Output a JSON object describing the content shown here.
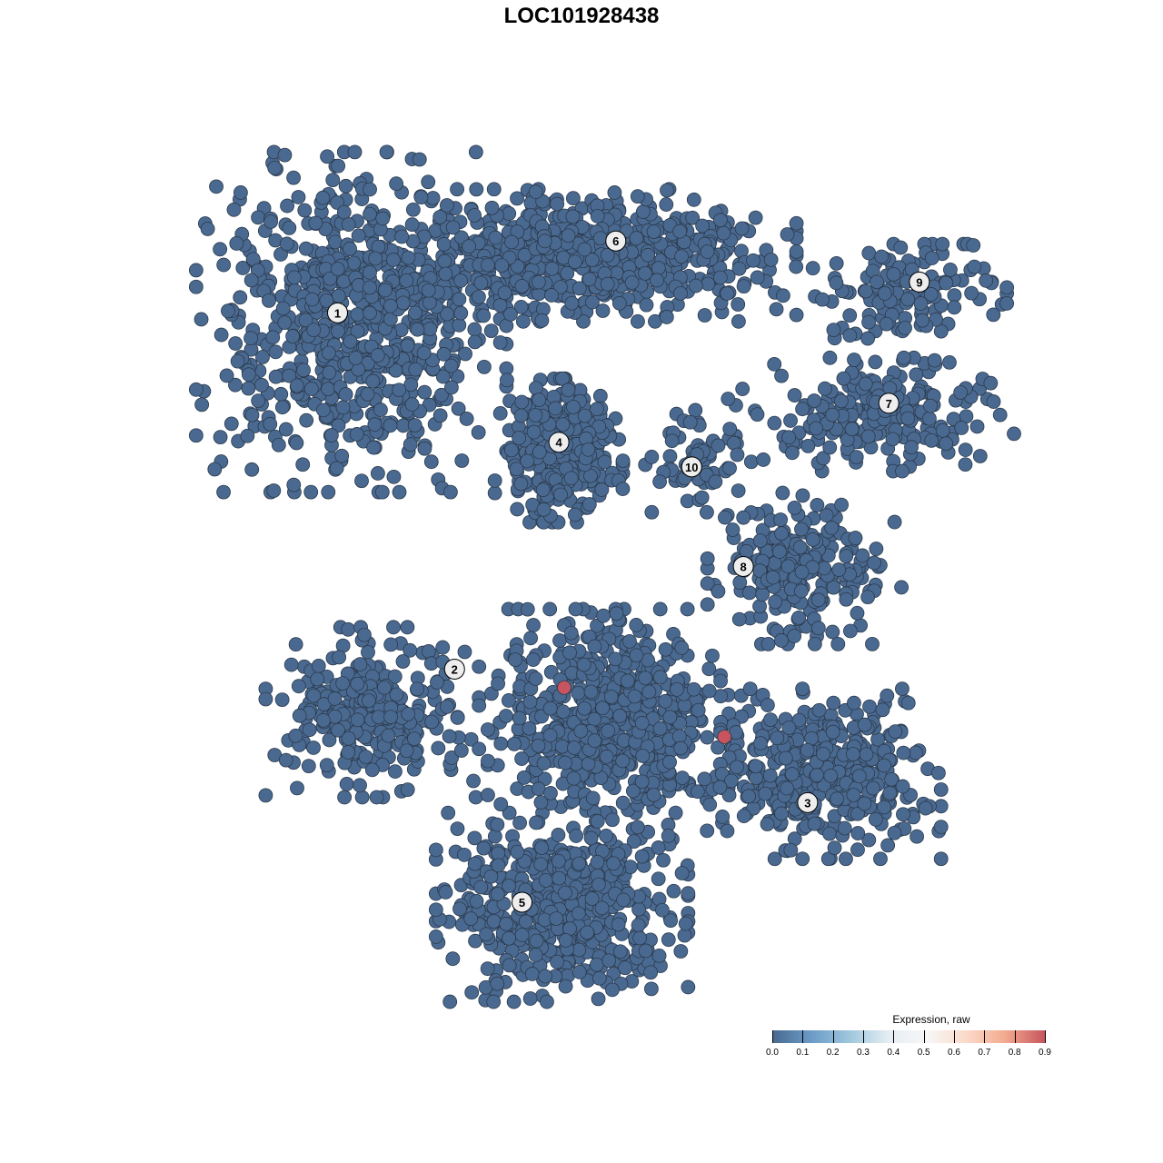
{
  "chart_data": {
    "type": "scatter",
    "title": "LOC101928438",
    "xlabel": "",
    "ylabel": "",
    "xlim": [
      -40,
      40
    ],
    "ylim": [
      -40,
      40
    ],
    "grid": false,
    "point_color": "#4a6990",
    "highlight_color": "#c8545f",
    "clusters": [
      {
        "label": "1",
        "label_pos": [
          -25.3,
          25.9
        ],
        "center": [
          -24,
          25
        ],
        "spread": [
          8,
          9
        ],
        "n": 700
      },
      {
        "label": "6",
        "label_pos": [
          1.1,
          32.9
        ],
        "center": [
          -2,
          31.5
        ],
        "spread": [
          11,
          3.5
        ],
        "n": 650
      },
      {
        "label": "4",
        "label_pos": [
          -4.3,
          13.3
        ],
        "center": [
          -4.3,
          12.5
        ],
        "spread": [
          3.3,
          3.8
        ],
        "n": 320
      },
      {
        "label": "9",
        "label_pos": [
          29.9,
          28.9
        ],
        "center": [
          29,
          28
        ],
        "spread": [
          5,
          2.5
        ],
        "n": 130
      },
      {
        "label": "7",
        "label_pos": [
          27.0,
          17.1
        ],
        "center": [
          26,
          16
        ],
        "spread": [
          7,
          3
        ],
        "n": 220
      },
      {
        "label": "10",
        "label_pos": [
          8.3,
          10.9
        ],
        "center": [
          8.5,
          12
        ],
        "spread": [
          2.5,
          3
        ],
        "n": 70
      },
      {
        "label": "8",
        "label_pos": [
          13.2,
          1.2
        ],
        "center": [
          19,
          1
        ],
        "spread": [
          5,
          4
        ],
        "n": 230
      },
      {
        "label": "2",
        "label_pos": [
          -14.2,
          -8.8
        ],
        "center": [
          -22,
          -13
        ],
        "spread": [
          5.5,
          4.5
        ],
        "n": 280
      },
      {
        "label": "5",
        "label_pos": [
          -7.8,
          -31.5
        ],
        "center": [
          -4,
          -32
        ],
        "spread": [
          6.5,
          5
        ],
        "n": 520
      },
      {
        "label": "3",
        "label_pos": [
          19.3,
          -21.8
        ],
        "center": [
          20,
          -19
        ],
        "spread": [
          6.5,
          4.5
        ],
        "n": 420
      },
      {
        "label": "",
        "label_pos": null,
        "center": [
          0,
          -14
        ],
        "spread": [
          6,
          6
        ],
        "n": 600
      }
    ],
    "highlighted_points": [
      {
        "x": -3.8,
        "y": -10.6,
        "value": 0.9
      },
      {
        "x": 11.4,
        "y": -15.4,
        "value": 0.9
      }
    ],
    "legend": {
      "title": "Expression, raw",
      "position": "bottom-right",
      "ticks": [
        "0.0",
        "0.1",
        "0.2",
        "0.3",
        "0.4",
        "0.5",
        "0.6",
        "0.7",
        "0.8",
        "0.9"
      ],
      "colors": [
        "#4a6990",
        "#6b9bc7",
        "#9fc8de",
        "#e6eef3",
        "#f7f7f7",
        "#fbd9c8",
        "#f2a98d",
        "#c8545f"
      ]
    }
  }
}
